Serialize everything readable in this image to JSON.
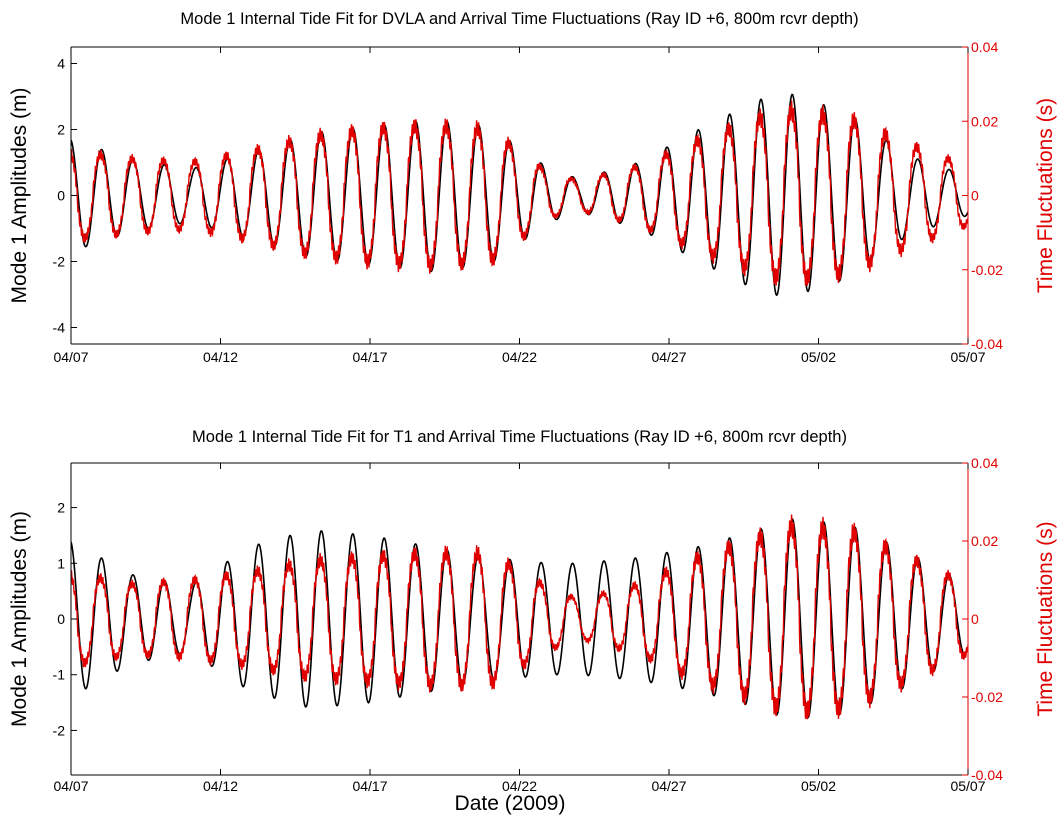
{
  "xlabel": "Date (2009)",
  "chart_data": [
    {
      "type": "line",
      "title": "Mode 1 Internal Tide Fit for DVLA and Arrival Time Fluctuations (Ray ID +6, 800m rcvr depth)",
      "xlabel": "",
      "ylabel_left": "Mode 1 Amplitudes (m)",
      "ylabel_right": "Time Fluctuations (s)",
      "x_range": [
        "2009-04-07",
        "2009-05-07"
      ],
      "x_ticks": [
        {
          "date": "2009-04-07",
          "label": "04/07"
        },
        {
          "date": "2009-04-12",
          "label": "04/12"
        },
        {
          "date": "2009-04-17",
          "label": "04/17"
        },
        {
          "date": "2009-04-22",
          "label": "04/22"
        },
        {
          "date": "2009-04-27",
          "label": "04/27"
        },
        {
          "date": "2009-05-02",
          "label": "05/02"
        },
        {
          "date": "2009-05-07",
          "label": "05/07"
        }
      ],
      "ylim_left": [
        -4.5,
        4.5
      ],
      "yticks_left": [
        {
          "value": 4,
          "label": "4"
        },
        {
          "value": 2,
          "label": "2"
        },
        {
          "value": 0,
          "label": "0"
        },
        {
          "value": -2,
          "label": "-2"
        },
        {
          "value": -4,
          "label": "-4"
        }
      ],
      "ylim_right": [
        -0.04,
        0.04
      ],
      "yticks_right": [
        {
          "value": 0.04,
          "label": "0.04"
        },
        {
          "value": 0.02,
          "label": "0.02"
        },
        {
          "value": 0,
          "label": "0"
        },
        {
          "value": -0.02,
          "label": "-0.02"
        },
        {
          "value": -0.04,
          "label": "-0.04"
        }
      ],
      "grid": false,
      "series": [
        {
          "axis": "left",
          "color": "#000000",
          "x": [
            "2009-04-07",
            "2009-04-09",
            "2009-04-11",
            "2009-04-13",
            "2009-04-15",
            "2009-04-17",
            "2009-04-19",
            "2009-04-21",
            "2009-04-23",
            "2009-04-24",
            "2009-04-26",
            "2009-04-28",
            "2009-04-30",
            "2009-05-01",
            "2009-05-03",
            "2009-05-05",
            "2009-05-07"
          ],
          "amplitude": [
            1.7,
            1.1,
            0.8,
            1.3,
            1.9,
            2.1,
            2.3,
            2.1,
            0.8,
            0.5,
            1.0,
            2.0,
            2.9,
            3.1,
            2.5,
            1.2,
            0.6
          ]
        },
        {
          "axis": "right",
          "color": "#e00000",
          "x": [
            "2009-04-07",
            "2009-04-09",
            "2009-04-11",
            "2009-04-13",
            "2009-04-15",
            "2009-04-17",
            "2009-04-19",
            "2009-04-21",
            "2009-04-23",
            "2009-04-24",
            "2009-04-26",
            "2009-04-28",
            "2009-04-30",
            "2009-05-01",
            "2009-05-03",
            "2009-05-05",
            "2009-05-07"
          ],
          "amplitude": [
            0.012,
            0.01,
            0.009,
            0.012,
            0.016,
            0.018,
            0.019,
            0.018,
            0.006,
            0.004,
            0.008,
            0.015,
            0.021,
            0.023,
            0.021,
            0.014,
            0.008
          ]
        }
      ]
    },
    {
      "type": "line",
      "title": "Mode 1 Internal Tide Fit for T1 and Arrival Time Fluctuations (Ray ID +6, 800m rcvr depth)",
      "xlabel": "Date (2009)",
      "ylabel_left": "Mode 1 Amplitudes (m)",
      "ylabel_right": "Time Fluctuations (s)",
      "x_range": [
        "2009-04-07",
        "2009-05-07"
      ],
      "x_ticks": [
        {
          "date": "2009-04-07",
          "label": "04/07"
        },
        {
          "date": "2009-04-12",
          "label": "04/12"
        },
        {
          "date": "2009-04-17",
          "label": "04/17"
        },
        {
          "date": "2009-04-22",
          "label": "04/22"
        },
        {
          "date": "2009-04-27",
          "label": "04/27"
        },
        {
          "date": "2009-05-02",
          "label": "05/02"
        },
        {
          "date": "2009-05-07",
          "label": "05/07"
        }
      ],
      "ylim_left": [
        -2.8,
        2.8
      ],
      "yticks_left": [
        {
          "value": 2,
          "label": "2"
        },
        {
          "value": 1,
          "label": "1"
        },
        {
          "value": 0,
          "label": "0"
        },
        {
          "value": -1,
          "label": "-1"
        },
        {
          "value": -2,
          "label": "-2"
        }
      ],
      "ylim_right": [
        -0.04,
        0.04
      ],
      "yticks_right": [
        {
          "value": 0.04,
          "label": "0.04"
        },
        {
          "value": 0.02,
          "label": "0.02"
        },
        {
          "value": 0,
          "label": "0"
        },
        {
          "value": -0.02,
          "label": "-0.02"
        },
        {
          "value": -0.04,
          "label": "-0.04"
        }
      ],
      "grid": false,
      "series": [
        {
          "axis": "left",
          "color": "#000000",
          "x": [
            "2009-04-07",
            "2009-04-09",
            "2009-04-11",
            "2009-04-13",
            "2009-04-15",
            "2009-04-17",
            "2009-04-19",
            "2009-04-21",
            "2009-04-23",
            "2009-04-24",
            "2009-04-26",
            "2009-04-28",
            "2009-04-30",
            "2009-05-01",
            "2009-05-03",
            "2009-05-05",
            "2009-05-07"
          ],
          "amplitude": [
            1.4,
            0.8,
            0.6,
            1.3,
            1.6,
            1.5,
            1.3,
            1.1,
            1.0,
            1.0,
            1.1,
            1.3,
            1.6,
            1.8,
            1.7,
            1.2,
            0.6
          ]
        },
        {
          "axis": "right",
          "color": "#e00000",
          "x": [
            "2009-04-07",
            "2009-04-09",
            "2009-04-11",
            "2009-04-13",
            "2009-04-15",
            "2009-04-17",
            "2009-04-19",
            "2009-04-21",
            "2009-04-23",
            "2009-04-24",
            "2009-04-26",
            "2009-04-28",
            "2009-04-30",
            "2009-05-01",
            "2009-05-03",
            "2009-05-05",
            "2009-05-07"
          ],
          "amplitude": [
            0.012,
            0.009,
            0.01,
            0.012,
            0.015,
            0.016,
            0.017,
            0.017,
            0.008,
            0.005,
            0.009,
            0.016,
            0.021,
            0.024,
            0.023,
            0.016,
            0.009
          ]
        }
      ]
    }
  ]
}
